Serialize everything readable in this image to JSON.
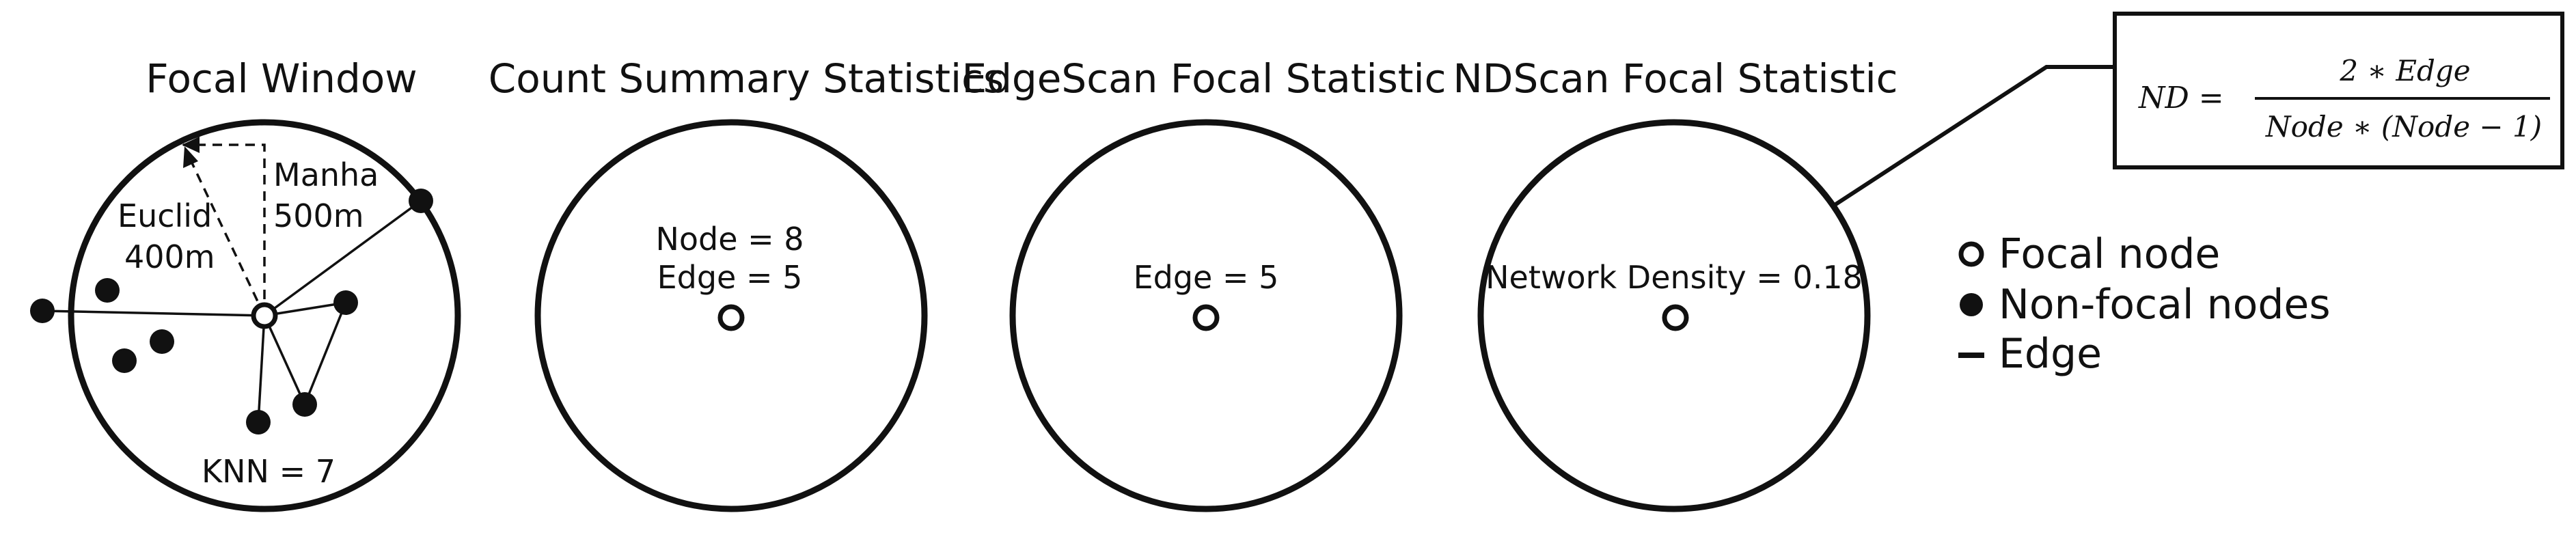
{
  "panels": [
    {
      "title": "Focal Window",
      "labels": {
        "manhattan_name": "Manha",
        "manhattan_distance": "500m",
        "euclid_name": "Euclid",
        "euclid_distance": "400m",
        "knn": "KNN = 7"
      }
    },
    {
      "title": "Count Summary Statistics",
      "lines": [
        "Node = 8",
        "Edge = 5"
      ]
    },
    {
      "title": "EdgeScan Focal Statistic",
      "lines": [
        "Edge = 5"
      ]
    },
    {
      "title": "NDScan Focal Statistic",
      "lines": [
        "Network Density = 0.18"
      ]
    }
  ],
  "formula": {
    "lhs": "ND =",
    "numerator": "2 ∗ Edge",
    "denominator": "Node ∗ (Node  − 1)"
  },
  "legend": {
    "items": [
      {
        "symbol": "open-circle",
        "label": "Focal node"
      },
      {
        "symbol": "filled-circle",
        "label": "Non-focal nodes"
      },
      {
        "symbol": "line",
        "label": "Edge"
      }
    ]
  },
  "colors": {
    "ink": "#111111",
    "background": "#ffffff"
  }
}
